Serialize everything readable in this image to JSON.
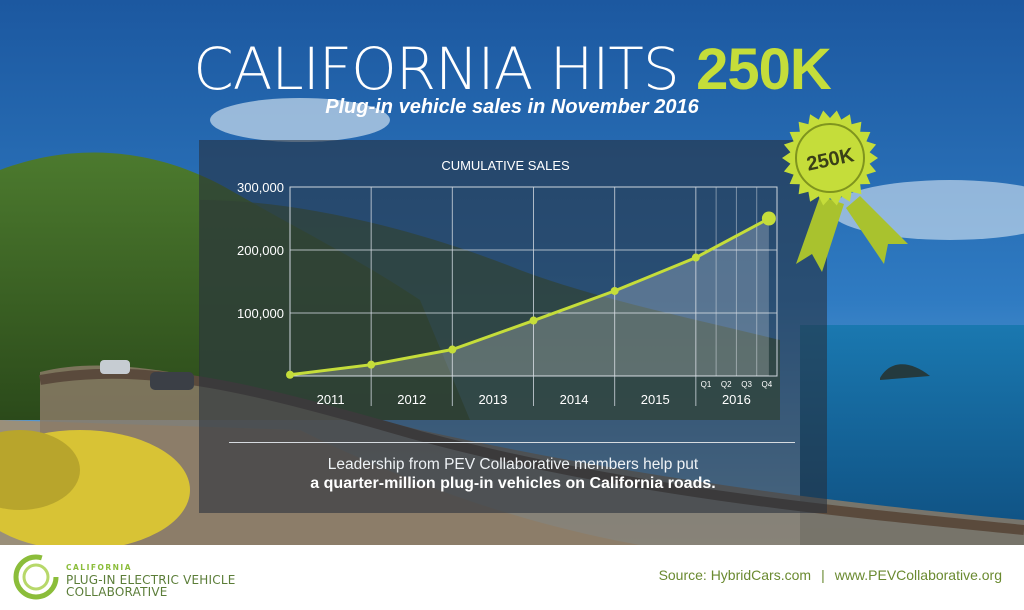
{
  "header": {
    "title_main": "CALIFORNIA HITS ",
    "title_accent": "250K",
    "subtitle": "Plug-in vehicle sales in November 2016"
  },
  "badge": {
    "label": "250K"
  },
  "colors": {
    "accent": "#c5dd3a",
    "panel": "#262e3a",
    "sky": "#1f63a8",
    "footer_text": "#6a8a30"
  },
  "chart_data": {
    "type": "line",
    "title": "CUMULATIVE SALES",
    "y_tick_labels": [
      "300,000",
      "200,000",
      "100,000"
    ],
    "ylim": [
      0,
      300000
    ],
    "year_labels": [
      "2011",
      "2012",
      "2013",
      "2014",
      "2015",
      "2016"
    ],
    "quarter_labels": [
      "Q1",
      "Q2",
      "Q3",
      "Q4"
    ],
    "grid": true,
    "series": [
      {
        "x": [
          2011.0,
          2012.0,
          2013.0,
          2014.0,
          2015.0,
          2016.0,
          2016.9
        ],
        "values": [
          2000,
          18000,
          42000,
          88000,
          135000,
          188000,
          250000
        ]
      }
    ]
  },
  "caption": {
    "line1": "Leadership from PEV Collaborative members help put",
    "line2": "a quarter-million plug-in vehicles on California roads."
  },
  "footer": {
    "logo_line1": "CALIFORNIA",
    "logo_line2": "PLUG-IN ELECTRIC VEHICLE",
    "logo_line3": "COLLABORATIVE",
    "source1": "Source: HybridCars.com",
    "separator": "|",
    "source2": "www.PEVCollaborative.org"
  }
}
